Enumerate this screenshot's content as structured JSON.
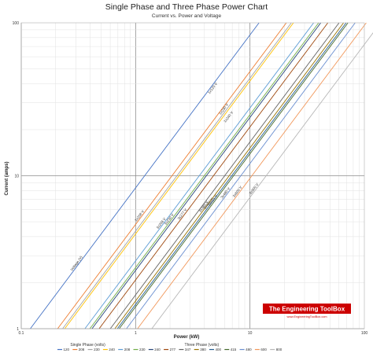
{
  "chart_data": {
    "type": "line",
    "title": "Single Phase and Three Phase Power Chart",
    "subtitle": "Current vs. Power and Voltage",
    "xlabel": "Power (kW)",
    "ylabel": "Current (amps)",
    "xscale": "log",
    "yscale": "log",
    "xlim": [
      0.1,
      100
    ],
    "ylim": [
      1,
      100
    ],
    "x_ticks": [
      "0.1",
      "1",
      "10",
      "100"
    ],
    "y_ticks": [
      "1",
      "10",
      "100"
    ],
    "grid": true,
    "legend": {
      "position": "bottom",
      "groups": [
        {
          "name": "Single Phase (volts)",
          "items": [
            "120",
            "208",
            "230",
            "240"
          ]
        },
        {
          "name": "Three Phase (volts)",
          "items": [
            "208",
            "230",
            "240",
            "277",
            "347",
            "380",
            "400",
            "415",
            "480",
            "600",
            "800"
          ]
        }
      ]
    },
    "series": [
      {
        "name": "120",
        "group": "single",
        "volts": 120,
        "color": "#4472c4",
        "label": "Voltage (V)",
        "label_at": 0.31
      },
      {
        "name": "208",
        "group": "single",
        "volts": 208,
        "color": "#ed7d31",
        "label": "1x208 V",
        "label_at": 1.1
      },
      {
        "name": "230",
        "group": "single",
        "volts": 230,
        "color": "#a5a5a5",
        "label": "",
        "label_at": 0
      },
      {
        "name": "240",
        "group": "single",
        "volts": 240,
        "color": "#ffc000",
        "label": "",
        "label_at": 0
      },
      {
        "name": "208",
        "group": "three",
        "volts": 208,
        "color": "#5b9bd5",
        "label": "3x208 V",
        "label_at": 1.7
      },
      {
        "name": "230",
        "group": "three",
        "volts": 230,
        "color": "#70ad47",
        "label": "3x230 V",
        "label_at": 2.0
      },
      {
        "name": "240",
        "group": "three",
        "volts": 240,
        "color": "#264478",
        "label": "",
        "label_at": 0
      },
      {
        "name": "277",
        "group": "three",
        "volts": 277,
        "color": "#9e480e",
        "label": "3x277 V",
        "label_at": 2.6
      },
      {
        "name": "347",
        "group": "three",
        "volts": 347,
        "color": "#636363",
        "label": "",
        "label_at": 0
      },
      {
        "name": "380",
        "group": "three",
        "volts": 380,
        "color": "#997300",
        "label": "3x380 V",
        "label_at": 4.0
      },
      {
        "name": "400",
        "group": "three",
        "volts": 400,
        "color": "#255e91",
        "label": "3x400 V",
        "label_at": 4.4
      },
      {
        "name": "415",
        "group": "three",
        "volts": 415,
        "color": "#43682b",
        "label": "3x415 V",
        "label_at": 4.8
      },
      {
        "name": "480",
        "group": "three",
        "volts": 480,
        "color": "#698ed0",
        "label": "3x480 V",
        "label_at": 6.2
      },
      {
        "name": "600",
        "group": "three",
        "volts": 600,
        "color": "#f1975a",
        "label": "3x600 V",
        "label_at": 7.9
      },
      {
        "name": "800",
        "group": "three",
        "volts": 800,
        "color": "#b7b7b7",
        "label": "3x800 V",
        "label_at": 11.0
      }
    ],
    "extra_labels": [
      {
        "text": "1x120 V",
        "x": 4.8,
        "y": 37
      },
      {
        "text": "1x230 V",
        "x": 6.0,
        "y": 27
      },
      {
        "text": "1x240 V",
        "x": 6.6,
        "y": 24
      }
    ]
  },
  "branding": {
    "name": "The Engineering ToolBox",
    "url": "www.EngineeringToolBox.com"
  }
}
